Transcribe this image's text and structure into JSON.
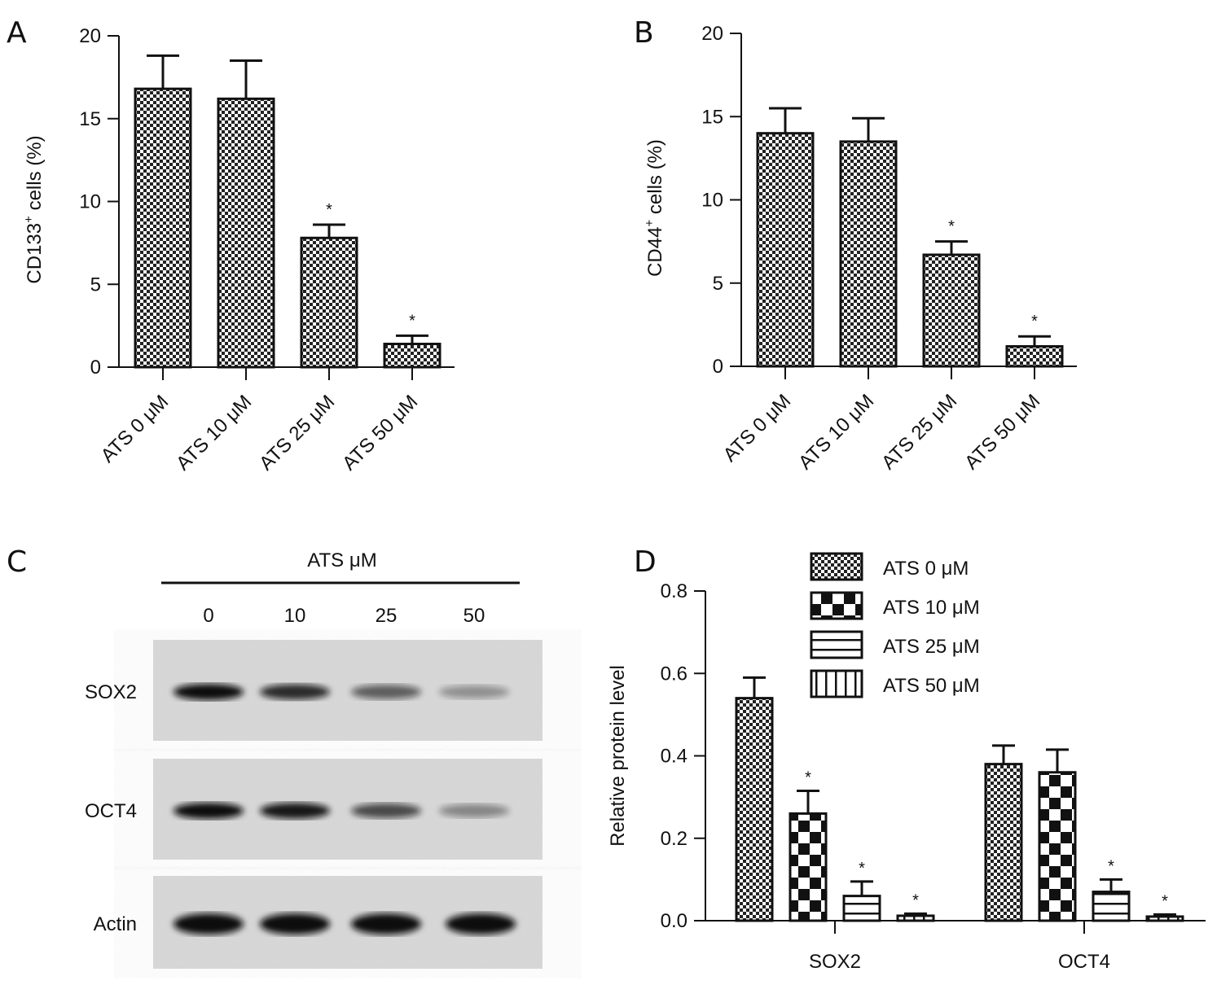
{
  "colors": {
    "ink": "#111111",
    "blot_bg": "#d8d8d8"
  },
  "panels": {
    "A": {
      "letter": "A"
    },
    "B": {
      "letter": "B"
    },
    "C": {
      "letter": "C"
    },
    "D": {
      "letter": "D"
    }
  },
  "blot": {
    "header": "ATS μM",
    "lanes": [
      "0",
      "10",
      "25",
      "50"
    ],
    "rows": [
      {
        "label": "SOX2",
        "band_intensity": [
          1.0,
          0.85,
          0.6,
          0.35
        ]
      },
      {
        "label": "OCT4",
        "band_intensity": [
          1.0,
          0.95,
          0.7,
          0.4
        ]
      },
      {
        "label": "Actin",
        "band_intensity": [
          1.0,
          1.0,
          1.0,
          1.0
        ]
      }
    ]
  },
  "chart_data": [
    {
      "panel": "A",
      "type": "bar",
      "categories": [
        "ATS 0 μM",
        "ATS 10 μM",
        "ATS 25 μM",
        "ATS 50 μM"
      ],
      "values": [
        16.8,
        16.2,
        7.8,
        1.4
      ],
      "errors": [
        2.0,
        2.3,
        0.8,
        0.5
      ],
      "significance": [
        "",
        "",
        "*",
        "*"
      ],
      "ylabel": "CD133",
      "ylabel_sup": "+",
      "ylabel_rest": " cells (%)",
      "ylim": [
        0,
        20
      ],
      "yticks": [
        0,
        5,
        10,
        15,
        20
      ]
    },
    {
      "panel": "B",
      "type": "bar",
      "categories": [
        "ATS 0 μM",
        "ATS 10 μM",
        "ATS 25 μM",
        "ATS 50 μM"
      ],
      "values": [
        14.0,
        13.5,
        6.7,
        1.2
      ],
      "errors": [
        1.5,
        1.4,
        0.8,
        0.6
      ],
      "significance": [
        "",
        "",
        "*",
        "*"
      ],
      "ylabel": "CD44",
      "ylabel_sup": "+",
      "ylabel_rest": " cells (%)",
      "ylim": [
        0,
        20
      ],
      "yticks": [
        0,
        5,
        10,
        15,
        20
      ]
    },
    {
      "panel": "D",
      "type": "bar",
      "categories": [
        "SOX2",
        "OCT4"
      ],
      "series": [
        {
          "name": "ATS 0 μM",
          "values": [
            0.54,
            0.38
          ],
          "errors": [
            0.05,
            0.045
          ],
          "significance": [
            "",
            ""
          ]
        },
        {
          "name": "ATS 10 μM",
          "values": [
            0.26,
            0.36
          ],
          "errors": [
            0.055,
            0.055
          ],
          "significance": [
            "*",
            ""
          ]
        },
        {
          "name": "ATS 25 μM",
          "values": [
            0.06,
            0.07
          ],
          "errors": [
            0.035,
            0.03
          ],
          "significance": [
            "*",
            "*"
          ]
        },
        {
          "name": "ATS 50 μM",
          "values": [
            0.012,
            0.01
          ],
          "errors": [
            0.005,
            0.005
          ],
          "significance": [
            "*",
            "*"
          ]
        }
      ],
      "ylabel": "Relative protein level",
      "ylim": [
        0,
        0.8
      ],
      "yticks": [
        "0.0",
        "0.2",
        "0.4",
        "0.6",
        "0.8"
      ],
      "legend": "top"
    }
  ]
}
